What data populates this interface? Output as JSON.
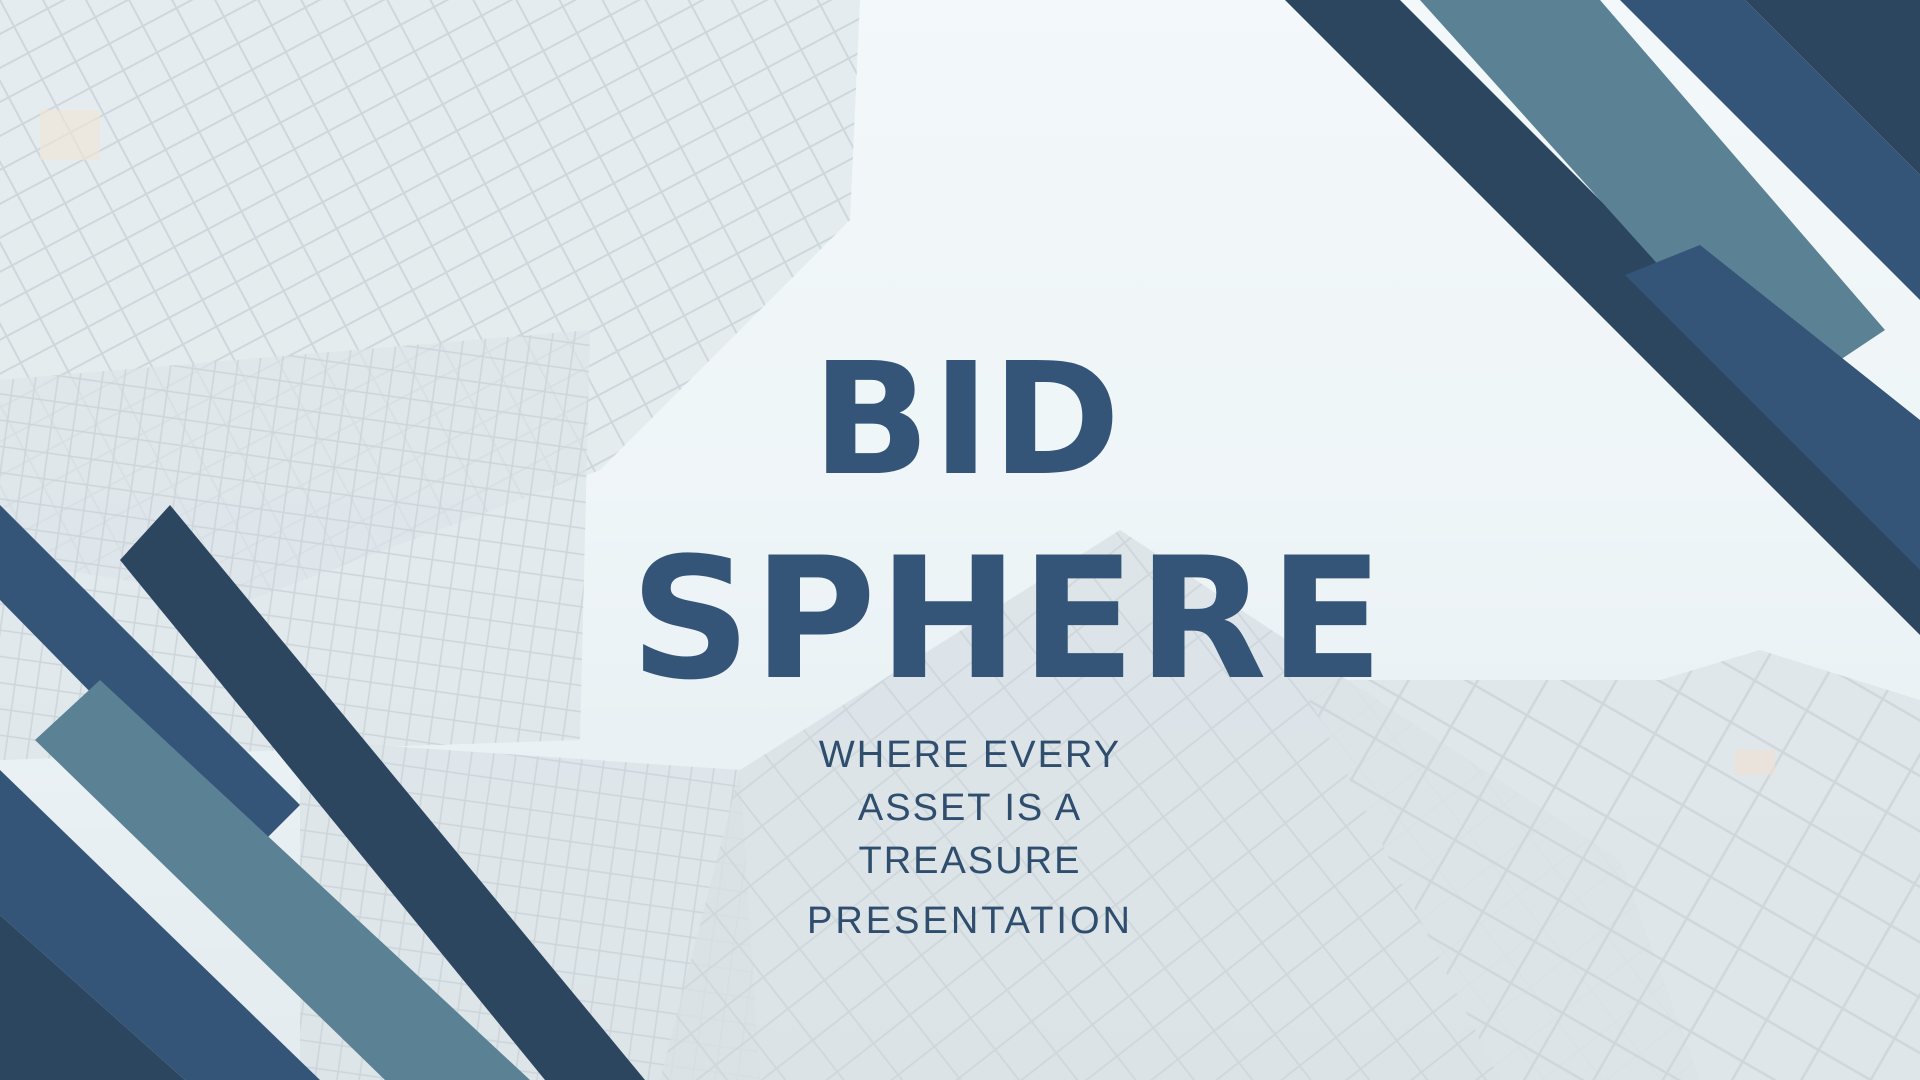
{
  "slide": {
    "title_line_1": "BID",
    "title_line_2": "SPHERE",
    "subtitle_line_1": "WHERE EVERY",
    "subtitle_line_2": "ASSET IS A",
    "subtitle_line_3": "TREASURE",
    "caption": "PRESENTATION"
  },
  "colors": {
    "navy": "#2c4660",
    "blue": "#345578",
    "steel": "#5a8194",
    "title": "#345578",
    "text": "#2f4d6d"
  }
}
